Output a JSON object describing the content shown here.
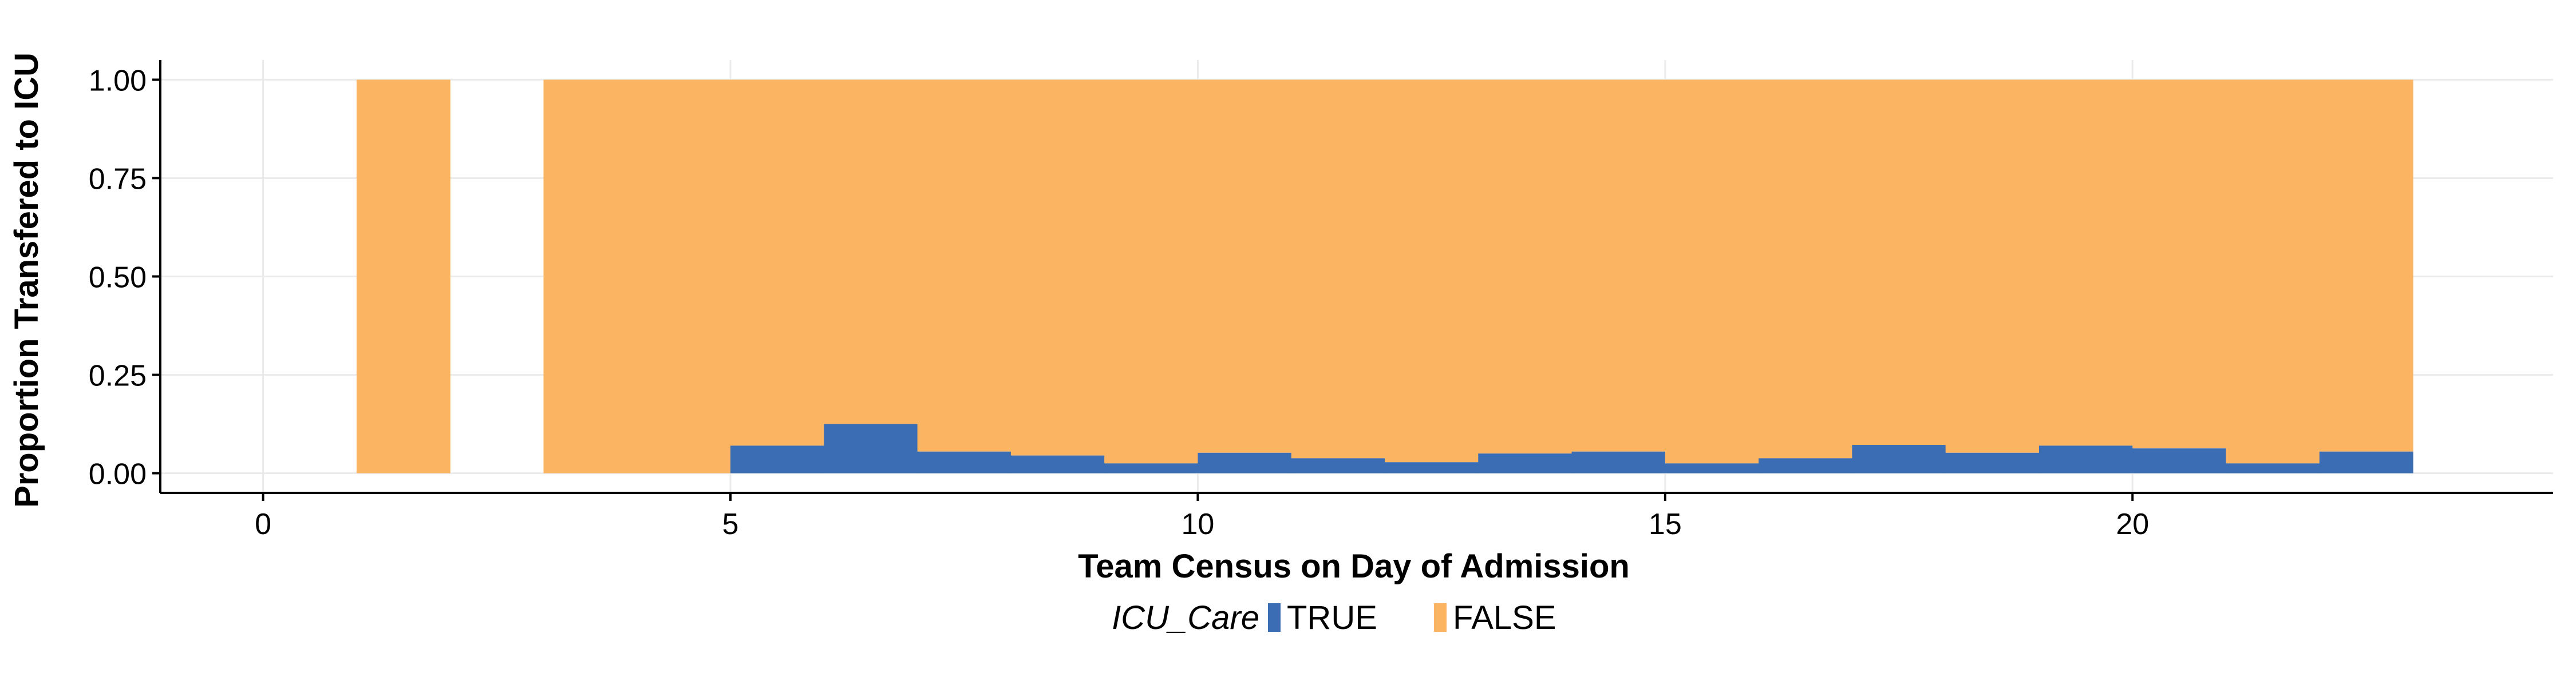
{
  "chart_data": {
    "type": "bar",
    "stacked": true,
    "title": "",
    "xlabel": "Team Census on Day of Admission",
    "ylabel": "Proportion Transfered to ICU",
    "xlim": [
      -1.1,
      24.5
    ],
    "ylim": [
      -0.05,
      1.05
    ],
    "x_ticks": [
      0,
      5,
      10,
      15,
      20
    ],
    "x_tick_labels": [
      "0",
      "5",
      "10",
      "15",
      "20"
    ],
    "y_ticks": [
      0,
      0.25,
      0.5,
      0.75,
      1
    ],
    "y_tick_labels": [
      "0.00",
      "0.25",
      "0.50",
      "0.75",
      "1.00"
    ],
    "grid": true,
    "legend": {
      "title": "ICU_Care",
      "position": "bottom",
      "entries": [
        "TRUE",
        "FALSE"
      ]
    },
    "colors": {
      "TRUE": "#3a6db3",
      "FALSE": "#fbb562"
    },
    "bins": [
      {
        "x0": 1,
        "x1": 2,
        "true": 0.0
      },
      {
        "x0": 3,
        "x1": 4,
        "true": 0.0
      },
      {
        "x0": 4,
        "x1": 5,
        "true": 0.0
      },
      {
        "x0": 5,
        "x1": 6,
        "true": 0.07
      },
      {
        "x0": 6,
        "x1": 7,
        "true": 0.125
      },
      {
        "x0": 7,
        "x1": 8,
        "true": 0.055
      },
      {
        "x0": 8,
        "x1": 9,
        "true": 0.045
      },
      {
        "x0": 9,
        "x1": 10,
        "true": 0.025
      },
      {
        "x0": 10,
        "x1": 11,
        "true": 0.052
      },
      {
        "x0": 11,
        "x1": 12,
        "true": 0.038
      },
      {
        "x0": 12,
        "x1": 13,
        "true": 0.028
      },
      {
        "x0": 13,
        "x1": 14,
        "true": 0.05
      },
      {
        "x0": 14,
        "x1": 15,
        "true": 0.055
      },
      {
        "x0": 15,
        "x1": 16,
        "true": 0.025
      },
      {
        "x0": 16,
        "x1": 17,
        "true": 0.038
      },
      {
        "x0": 17,
        "x1": 18,
        "true": 0.072
      },
      {
        "x0": 18,
        "x1": 19,
        "true": 0.052
      },
      {
        "x0": 19,
        "x1": 20,
        "true": 0.07
      },
      {
        "x0": 20,
        "x1": 21,
        "true": 0.063
      },
      {
        "x0": 21,
        "x1": 22,
        "true": 0.025
      },
      {
        "x0": 22,
        "x1": 23,
        "true": 0.055
      }
    ]
  }
}
